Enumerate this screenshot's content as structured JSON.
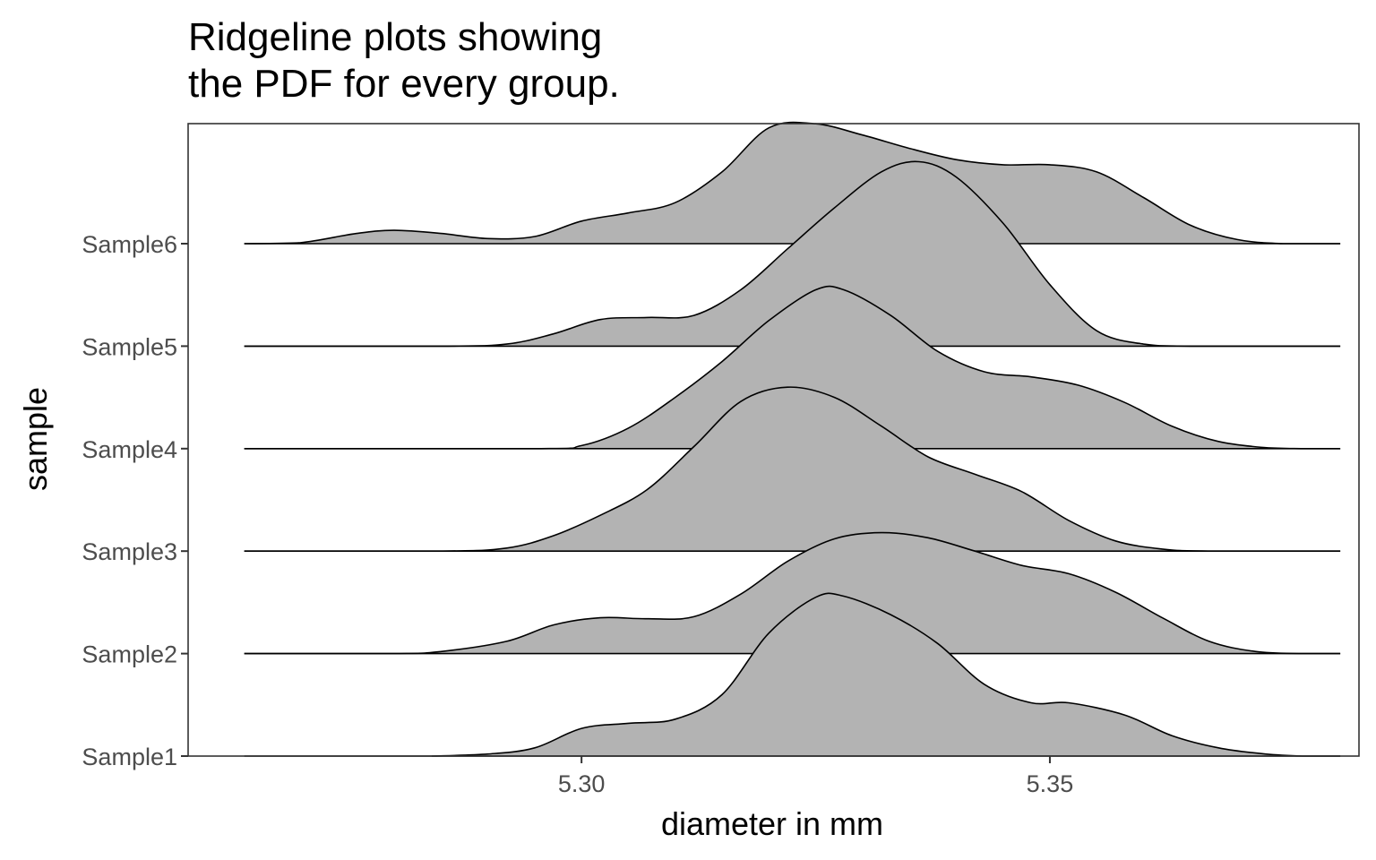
{
  "chart_data": {
    "type": "ridgeline",
    "title_lines": [
      "Ridgeline plots showing",
      "the PDF for every group."
    ],
    "xlabel": "diameter in mm",
    "ylabel": "sample",
    "xlim": [
      5.258,
      5.383
    ],
    "x_ticks": [
      {
        "value": 5.3,
        "label": "5.30"
      },
      {
        "value": 5.35,
        "label": "5.35"
      }
    ],
    "density_scale_max": 1.17,
    "fill_color": "#b3b3b3",
    "line_color": "#000000",
    "grid": false,
    "legend": "none",
    "series": [
      {
        "name": "Sample1",
        "points": [
          [
            5.284,
            0.0
          ],
          [
            5.29,
            0.02
          ],
          [
            5.295,
            0.08
          ],
          [
            5.3,
            0.27
          ],
          [
            5.305,
            0.32
          ],
          [
            5.31,
            0.36
          ],
          [
            5.315,
            0.6
          ],
          [
            5.32,
            1.2
          ],
          [
            5.325,
            1.55
          ],
          [
            5.328,
            1.56
          ],
          [
            5.333,
            1.38
          ],
          [
            5.338,
            1.1
          ],
          [
            5.343,
            0.7
          ],
          [
            5.348,
            0.52
          ],
          [
            5.352,
            0.52
          ],
          [
            5.358,
            0.4
          ],
          [
            5.363,
            0.2
          ],
          [
            5.368,
            0.08
          ],
          [
            5.373,
            0.02
          ],
          [
            5.377,
            0.0
          ],
          [
            5.381,
            0.0
          ]
        ]
      },
      {
        "name": "Sample2",
        "points": [
          [
            5.264,
            0.0
          ],
          [
            5.28,
            0.0
          ],
          [
            5.285,
            0.02
          ],
          [
            5.292,
            0.12
          ],
          [
            5.297,
            0.28
          ],
          [
            5.302,
            0.35
          ],
          [
            5.307,
            0.34
          ],
          [
            5.312,
            0.36
          ],
          [
            5.317,
            0.58
          ],
          [
            5.322,
            0.9
          ],
          [
            5.327,
            1.12
          ],
          [
            5.332,
            1.18
          ],
          [
            5.337,
            1.13
          ],
          [
            5.342,
            1.0
          ],
          [
            5.347,
            0.86
          ],
          [
            5.352,
            0.78
          ],
          [
            5.357,
            0.6
          ],
          [
            5.362,
            0.35
          ],
          [
            5.367,
            0.12
          ],
          [
            5.372,
            0.02
          ],
          [
            5.377,
            0.0
          ],
          [
            5.381,
            0.0
          ]
        ]
      },
      {
        "name": "Sample3",
        "points": [
          [
            5.264,
            0.0
          ],
          [
            5.285,
            0.0
          ],
          [
            5.292,
            0.03
          ],
          [
            5.297,
            0.15
          ],
          [
            5.302,
            0.35
          ],
          [
            5.307,
            0.6
          ],
          [
            5.312,
            1.02
          ],
          [
            5.317,
            1.46
          ],
          [
            5.322,
            1.6
          ],
          [
            5.327,
            1.5
          ],
          [
            5.332,
            1.22
          ],
          [
            5.337,
            0.92
          ],
          [
            5.342,
            0.75
          ],
          [
            5.347,
            0.58
          ],
          [
            5.352,
            0.3
          ],
          [
            5.357,
            0.1
          ],
          [
            5.362,
            0.02
          ],
          [
            5.367,
            0.0
          ],
          [
            5.381,
            0.0
          ]
        ]
      },
      {
        "name": "Sample4",
        "points": [
          [
            5.264,
            0.0
          ],
          [
            5.295,
            0.0
          ],
          [
            5.3,
            0.03
          ],
          [
            5.305,
            0.2
          ],
          [
            5.31,
            0.5
          ],
          [
            5.315,
            0.85
          ],
          [
            5.32,
            1.25
          ],
          [
            5.325,
            1.55
          ],
          [
            5.328,
            1.55
          ],
          [
            5.333,
            1.3
          ],
          [
            5.338,
            0.95
          ],
          [
            5.343,
            0.75
          ],
          [
            5.348,
            0.7
          ],
          [
            5.353,
            0.62
          ],
          [
            5.358,
            0.45
          ],
          [
            5.363,
            0.22
          ],
          [
            5.368,
            0.07
          ],
          [
            5.373,
            0.01
          ],
          [
            5.377,
            0.0
          ],
          [
            5.381,
            0.0
          ]
        ]
      },
      {
        "name": "Sample5",
        "points": [
          [
            5.264,
            0.0
          ],
          [
            5.285,
            0.0
          ],
          [
            5.292,
            0.02
          ],
          [
            5.297,
            0.12
          ],
          [
            5.302,
            0.26
          ],
          [
            5.307,
            0.28
          ],
          [
            5.312,
            0.3
          ],
          [
            5.317,
            0.55
          ],
          [
            5.322,
            0.95
          ],
          [
            5.327,
            1.35
          ],
          [
            5.332,
            1.7
          ],
          [
            5.336,
            1.8
          ],
          [
            5.34,
            1.65
          ],
          [
            5.345,
            1.2
          ],
          [
            5.35,
            0.6
          ],
          [
            5.355,
            0.15
          ],
          [
            5.36,
            0.02
          ],
          [
            5.365,
            0.0
          ],
          [
            5.381,
            0.0
          ]
        ]
      },
      {
        "name": "Sample6",
        "points": [
          [
            5.264,
            0.0
          ],
          [
            5.27,
            0.01
          ],
          [
            5.276,
            0.1
          ],
          [
            5.28,
            0.13
          ],
          [
            5.285,
            0.1
          ],
          [
            5.29,
            0.05
          ],
          [
            5.295,
            0.07
          ],
          [
            5.3,
            0.22
          ],
          [
            5.305,
            0.3
          ],
          [
            5.31,
            0.4
          ],
          [
            5.315,
            0.7
          ],
          [
            5.32,
            1.13
          ],
          [
            5.325,
            1.17
          ],
          [
            5.33,
            1.06
          ],
          [
            5.335,
            0.93
          ],
          [
            5.34,
            0.82
          ],
          [
            5.345,
            0.77
          ],
          [
            5.35,
            0.77
          ],
          [
            5.355,
            0.7
          ],
          [
            5.36,
            0.45
          ],
          [
            5.365,
            0.18
          ],
          [
            5.37,
            0.04
          ],
          [
            5.375,
            0.0
          ],
          [
            5.381,
            0.0
          ]
        ]
      }
    ]
  }
}
